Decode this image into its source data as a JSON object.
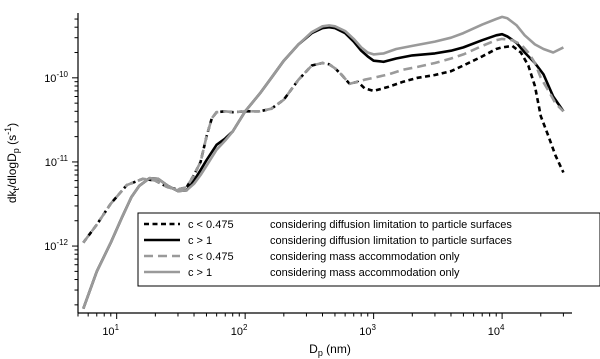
{
  "chart_data": {
    "type": "line",
    "xlabel_main": "D",
    "xlabel_sub": "p",
    "xlabel_unit": " (nm)",
    "ylabel_main": "dk",
    "ylabel_sub1": "t",
    "ylabel_mid": "/dlogD",
    "ylabel_sub2": "p",
    "ylabel_unit": " (s",
    "ylabel_sup": "-1",
    "ylabel_close": ")",
    "xscale": "log",
    "yscale": "log",
    "xlim": [
      5,
      35000
    ],
    "ylim": [
      1.6e-13,
      5.9e-10
    ],
    "xticks": [
      {
        "base": "10",
        "exp": "1",
        "value": 10
      },
      {
        "base": "10",
        "exp": "2",
        "value": 100
      },
      {
        "base": "10",
        "exp": "3",
        "value": 1000
      },
      {
        "base": "10",
        "exp": "4",
        "value": 10000
      }
    ],
    "yticks": [
      {
        "base": "10",
        "exp": "-12",
        "value": 1e-12
      },
      {
        "base": "10",
        "exp": "-11",
        "value": 1e-11
      },
      {
        "base": "10",
        "exp": "-10",
        "value": 1e-10
      }
    ],
    "legend_position": "bottom-right",
    "series": [
      {
        "name": "c < 0.475",
        "description": "considering diffusion limitation to particle surfaces",
        "color": "#000000",
        "dash": "dashed",
        "x": [
          5.5,
          7,
          9,
          12,
          16,
          20,
          25,
          30,
          35,
          40,
          45,
          50,
          55,
          60,
          70,
          80,
          100,
          130,
          160,
          200,
          260,
          330,
          400,
          450,
          500,
          560,
          650,
          750,
          850,
          1000,
          1300,
          1700,
          2200,
          3000,
          4000,
          5000,
          7000,
          9000,
          10000,
          12000,
          14000,
          16000,
          18000,
          20000,
          23000,
          26000,
          30000
        ],
        "y": [
          1.1e-12,
          1.8e-12,
          3.2e-12,
          5.3e-12,
          6.3e-12,
          6e-12,
          5e-12,
          4.7e-12,
          5e-12,
          7e-12,
          1e-11,
          2e-11,
          3.3e-11,
          3.9e-11,
          4e-11,
          3.9e-11,
          4e-11,
          4e-11,
          4.3e-11,
          5.5e-11,
          9.5e-11,
          1.4e-10,
          1.5e-10,
          1.45e-10,
          1.3e-10,
          1.1e-10,
          8.5e-11,
          9e-11,
          7.5e-11,
          7e-11,
          7.8e-11,
          9e-11,
          1e-10,
          1.08e-10,
          1.2e-10,
          1.4e-10,
          1.8e-10,
          2.2e-10,
          2.3e-10,
          2.4e-10,
          2e-10,
          1.4e-10,
          8e-11,
          3.5e-11,
          2e-11,
          1.2e-11,
          7.5e-12
        ]
      },
      {
        "name": "c > 1",
        "description": "considering diffusion limitation to particle surfaces",
        "color": "#000000",
        "dash": "solid",
        "x": [
          5.5,
          7,
          9,
          11,
          13,
          15,
          18,
          21,
          25,
          30,
          35,
          40,
          45,
          50,
          60,
          70,
          80,
          100,
          130,
          160,
          200,
          260,
          330,
          400,
          450,
          500,
          600,
          700,
          800,
          900,
          1000,
          1200,
          1500,
          2000,
          3000,
          4000,
          5000,
          7000,
          9000,
          10000,
          11000,
          13000,
          15000,
          18000,
          21000,
          25000,
          30000
        ],
        "y": [
          1.8e-13,
          5e-13,
          1.1e-12,
          2.2e-12,
          3.8e-12,
          5.2e-12,
          6.4e-12,
          6.3e-12,
          5.2e-12,
          4.5e-12,
          4.6e-12,
          6e-12,
          8e-12,
          1.05e-11,
          1.6e-11,
          1.9e-11,
          2.3e-11,
          4e-11,
          6.5e-11,
          1e-10,
          1.6e-10,
          2.5e-10,
          3.4e-10,
          3.9e-10,
          4e-10,
          3.9e-10,
          3.4e-10,
          2.7e-10,
          2.1e-10,
          1.8e-10,
          1.6e-10,
          1.55e-10,
          1.7e-10,
          1.85e-10,
          1.95e-10,
          2.1e-10,
          2.3e-10,
          2.8e-10,
          3.2e-10,
          3.3e-10,
          3.1e-10,
          2.6e-10,
          2e-10,
          1.5e-10,
          1.1e-10,
          6e-11,
          4e-11
        ]
      },
      {
        "name": "c < 0.475",
        "description": "considering mass accommodation only",
        "color": "#9a9a9a",
        "dash": "dashed",
        "x": [
          5.5,
          7,
          9,
          12,
          16,
          20,
          25,
          30,
          35,
          40,
          45,
          50,
          55,
          60,
          70,
          80,
          100,
          130,
          160,
          200,
          260,
          330,
          400,
          450,
          500,
          560,
          650,
          750,
          850,
          1000,
          1300,
          1700,
          2200,
          3000,
          4000,
          5000,
          7000,
          9000,
          10000,
          12000,
          14000,
          16000,
          18000,
          20000,
          23000,
          26000,
          30000
        ],
        "y": [
          1.1e-12,
          1.8e-12,
          3.2e-12,
          5.3e-12,
          6.3e-12,
          6e-12,
          5e-12,
          4.7e-12,
          5e-12,
          7e-12,
          1e-11,
          2e-11,
          3.3e-11,
          3.9e-11,
          4e-11,
          3.9e-11,
          4e-11,
          4e-11,
          4.3e-11,
          5.5e-11,
          9.5e-11,
          1.4e-10,
          1.5e-10,
          1.45e-10,
          1.3e-10,
          1.1e-10,
          8.5e-11,
          9e-11,
          9.5e-11,
          1e-10,
          1.1e-10,
          1.25e-10,
          1.35e-10,
          1.5e-10,
          1.7e-10,
          1.9e-10,
          2.4e-10,
          2.8e-10,
          2.9e-10,
          2.8e-10,
          2.5e-10,
          2e-10,
          1.5e-10,
          1e-10,
          7e-11,
          5e-11,
          4e-11
        ]
      },
      {
        "name": "c > 1",
        "description": "considering mass accommodation only",
        "color": "#9a9a9a",
        "dash": "solid",
        "x": [
          5.5,
          7,
          9,
          11,
          13,
          15,
          18,
          21,
          25,
          30,
          35,
          40,
          45,
          50,
          60,
          70,
          80,
          100,
          130,
          160,
          200,
          260,
          330,
          400,
          450,
          500,
          600,
          700,
          800,
          900,
          1000,
          1200,
          1500,
          2000,
          3000,
          4000,
          5000,
          7000,
          9000,
          10000,
          11000,
          13000,
          15000,
          18000,
          21000,
          25000,
          30000
        ],
        "y": [
          1.8e-13,
          5e-13,
          1.1e-12,
          2.2e-12,
          3.8e-12,
          5.2e-12,
          6.4e-12,
          6.3e-12,
          5.2e-12,
          4.5e-12,
          4.6e-12,
          5.5e-12,
          7e-12,
          9e-12,
          1.4e-11,
          1.8e-11,
          2.3e-11,
          4e-11,
          6.5e-11,
          1e-10,
          1.6e-10,
          2.5e-10,
          3.5e-10,
          4.1e-10,
          4.2e-10,
          4.1e-10,
          3.6e-10,
          2.9e-10,
          2.3e-10,
          2e-10,
          1.9e-10,
          1.95e-10,
          2.2e-10,
          2.4e-10,
          2.7e-10,
          3e-10,
          3.4e-10,
          4.3e-10,
          5e-10,
          5.3e-10,
          5.1e-10,
          4.2e-10,
          3.2e-10,
          2.5e-10,
          2.2e-10,
          2e-10,
          2.3e-10
        ]
      }
    ]
  }
}
